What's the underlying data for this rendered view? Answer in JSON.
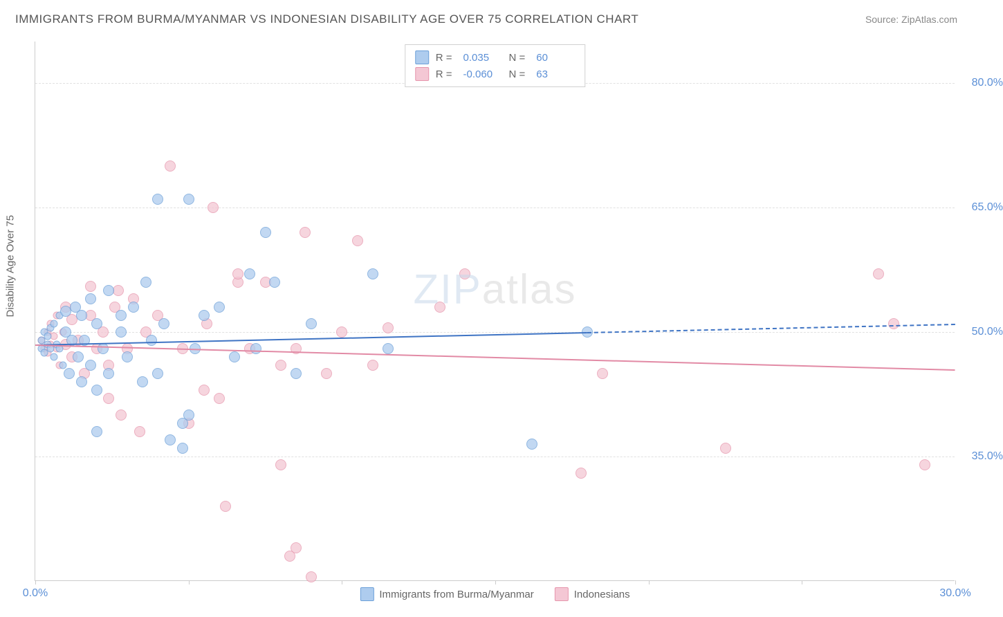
{
  "title": "IMMIGRANTS FROM BURMA/MYANMAR VS INDONESIAN DISABILITY AGE OVER 75 CORRELATION CHART",
  "source": "Source: ZipAtlas.com",
  "watermark_prefix": "ZIP",
  "watermark_suffix": "atlas",
  "y_axis_label": "Disability Age Over 75",
  "colors": {
    "series_a_fill": "#aeccee",
    "series_a_stroke": "#6b9fd8",
    "series_b_fill": "#f4c7d4",
    "series_b_stroke": "#e695ac",
    "trend_a": "#3f74c4",
    "trend_b": "#e28aa5",
    "grid": "#e0e0e0",
    "axis": "#cccccc",
    "tick_text": "#5b8fd6"
  },
  "chart": {
    "type": "scatter",
    "xlim": [
      0,
      30
    ],
    "ylim": [
      20,
      85
    ],
    "x_ticks": [
      0,
      5,
      10,
      15,
      20,
      25,
      30
    ],
    "x_tick_labels": {
      "0": "0.0%",
      "30": "30.0%"
    },
    "y_gridlines": [
      35,
      50,
      65,
      80
    ],
    "y_tick_labels": {
      "35": "35.0%",
      "50": "50.0%",
      "65": "65.0%",
      "80": "80.0%"
    },
    "marker_radius": 8,
    "marker_opacity": 0.75
  },
  "legend_top": [
    {
      "swatch": "a",
      "r_label": "R =",
      "r": "0.035",
      "n_label": "N =",
      "n": "60"
    },
    {
      "swatch": "b",
      "r_label": "R =",
      "r": "-0.060",
      "n_label": "N =",
      "n": "63"
    }
  ],
  "legend_bottom": [
    {
      "swatch": "a",
      "label": "Immigrants from Burma/Myanmar"
    },
    {
      "swatch": "b",
      "label": "Indonesians"
    }
  ],
  "trend_lines": {
    "a": {
      "x1": 0,
      "y1": 48.5,
      "x2": 18,
      "y2": 50.0,
      "x2_dash": 30,
      "y2_dash": 51.0
    },
    "b": {
      "x1": 0,
      "y1": 48.5,
      "x2": 30,
      "y2": 45.5
    }
  },
  "series_a": [
    {
      "x": 0.2,
      "y": 48
    },
    {
      "x": 0.2,
      "y": 49
    },
    {
      "x": 0.3,
      "y": 50
    },
    {
      "x": 0.3,
      "y": 47.5
    },
    {
      "x": 0.4,
      "y": 48.5
    },
    {
      "x": 0.4,
      "y": 49.5
    },
    {
      "x": 0.5,
      "y": 48
    },
    {
      "x": 0.5,
      "y": 50.5
    },
    {
      "x": 0.6,
      "y": 47
    },
    {
      "x": 0.6,
      "y": 51
    },
    {
      "x": 0.7,
      "y": 48.5
    },
    {
      "x": 0.8,
      "y": 52
    },
    {
      "x": 0.8,
      "y": 48
    },
    {
      "x": 0.9,
      "y": 46
    },
    {
      "x": 1.0,
      "y": 50
    },
    {
      "x": 1.0,
      "y": 52.5
    },
    {
      "x": 1.1,
      "y": 45
    },
    {
      "x": 1.2,
      "y": 49
    },
    {
      "x": 1.3,
      "y": 53
    },
    {
      "x": 1.4,
      "y": 47
    },
    {
      "x": 1.5,
      "y": 52
    },
    {
      "x": 1.5,
      "y": 44
    },
    {
      "x": 1.6,
      "y": 49
    },
    {
      "x": 1.8,
      "y": 46
    },
    {
      "x": 1.8,
      "y": 54
    },
    {
      "x": 2.0,
      "y": 51
    },
    {
      "x": 2.0,
      "y": 43
    },
    {
      "x": 2.0,
      "y": 38
    },
    {
      "x": 2.2,
      "y": 48
    },
    {
      "x": 2.4,
      "y": 55
    },
    {
      "x": 2.4,
      "y": 45
    },
    {
      "x": 2.8,
      "y": 52
    },
    {
      "x": 2.8,
      "y": 50
    },
    {
      "x": 3.0,
      "y": 47
    },
    {
      "x": 3.2,
      "y": 53
    },
    {
      "x": 3.5,
      "y": 44
    },
    {
      "x": 3.6,
      "y": 56
    },
    {
      "x": 3.8,
      "y": 49
    },
    {
      "x": 4.0,
      "y": 66
    },
    {
      "x": 4.0,
      "y": 45
    },
    {
      "x": 4.2,
      "y": 51
    },
    {
      "x": 4.4,
      "y": 37
    },
    {
      "x": 4.8,
      "y": 39
    },
    {
      "x": 4.8,
      "y": 36
    },
    {
      "x": 5.0,
      "y": 66
    },
    {
      "x": 5.0,
      "y": 40
    },
    {
      "x": 5.2,
      "y": 48
    },
    {
      "x": 5.5,
      "y": 52
    },
    {
      "x": 6.0,
      "y": 53
    },
    {
      "x": 6.5,
      "y": 47
    },
    {
      "x": 7.0,
      "y": 57
    },
    {
      "x": 7.2,
      "y": 48
    },
    {
      "x": 7.5,
      "y": 62
    },
    {
      "x": 7.8,
      "y": 56
    },
    {
      "x": 8.5,
      "y": 45
    },
    {
      "x": 9.0,
      "y": 51
    },
    {
      "x": 11.0,
      "y": 57
    },
    {
      "x": 11.5,
      "y": 48
    },
    {
      "x": 16.2,
      "y": 36.5
    },
    {
      "x": 18.0,
      "y": 50
    }
  ],
  "series_b": [
    {
      "x": 0.2,
      "y": 49
    },
    {
      "x": 0.3,
      "y": 48
    },
    {
      "x": 0.4,
      "y": 47.5
    },
    {
      "x": 0.4,
      "y": 50
    },
    {
      "x": 0.5,
      "y": 48.5
    },
    {
      "x": 0.5,
      "y": 51
    },
    {
      "x": 0.6,
      "y": 49.5
    },
    {
      "x": 0.7,
      "y": 48
    },
    {
      "x": 0.7,
      "y": 52
    },
    {
      "x": 0.8,
      "y": 46
    },
    {
      "x": 0.9,
      "y": 50
    },
    {
      "x": 1.0,
      "y": 48.5
    },
    {
      "x": 1.0,
      "y": 53
    },
    {
      "x": 1.2,
      "y": 47
    },
    {
      "x": 1.2,
      "y": 51.5
    },
    {
      "x": 1.4,
      "y": 49
    },
    {
      "x": 1.6,
      "y": 45
    },
    {
      "x": 1.8,
      "y": 52
    },
    {
      "x": 1.8,
      "y": 55.5
    },
    {
      "x": 2.0,
      "y": 48
    },
    {
      "x": 2.2,
      "y": 50
    },
    {
      "x": 2.4,
      "y": 46
    },
    {
      "x": 2.4,
      "y": 42
    },
    {
      "x": 2.6,
      "y": 53
    },
    {
      "x": 2.7,
      "y": 55
    },
    {
      "x": 2.8,
      "y": 40
    },
    {
      "x": 3.0,
      "y": 48
    },
    {
      "x": 3.2,
      "y": 54
    },
    {
      "x": 3.4,
      "y": 38
    },
    {
      "x": 3.6,
      "y": 50
    },
    {
      "x": 4.0,
      "y": 52
    },
    {
      "x": 4.4,
      "y": 70
    },
    {
      "x": 4.8,
      "y": 48
    },
    {
      "x": 5.0,
      "y": 39
    },
    {
      "x": 5.5,
      "y": 43
    },
    {
      "x": 5.6,
      "y": 51
    },
    {
      "x": 5.8,
      "y": 65
    },
    {
      "x": 6.0,
      "y": 42
    },
    {
      "x": 6.2,
      "y": 29
    },
    {
      "x": 6.6,
      "y": 56
    },
    {
      "x": 6.6,
      "y": 57
    },
    {
      "x": 7.0,
      "y": 48
    },
    {
      "x": 7.5,
      "y": 56
    },
    {
      "x": 8.0,
      "y": 34
    },
    {
      "x": 8.0,
      "y": 46
    },
    {
      "x": 8.3,
      "y": 23
    },
    {
      "x": 8.5,
      "y": 24
    },
    {
      "x": 8.5,
      "y": 48
    },
    {
      "x": 8.8,
      "y": 62
    },
    {
      "x": 9.0,
      "y": 20.5
    },
    {
      "x": 9.5,
      "y": 45
    },
    {
      "x": 10.0,
      "y": 50
    },
    {
      "x": 10.5,
      "y": 61
    },
    {
      "x": 11.0,
      "y": 46
    },
    {
      "x": 13.2,
      "y": 53
    },
    {
      "x": 14.0,
      "y": 57
    },
    {
      "x": 17.8,
      "y": 33
    },
    {
      "x": 18.5,
      "y": 45
    },
    {
      "x": 22.5,
      "y": 36
    },
    {
      "x": 27.5,
      "y": 57
    },
    {
      "x": 28.0,
      "y": 51
    },
    {
      "x": 29.0,
      "y": 34
    },
    {
      "x": 11.5,
      "y": 50.5
    }
  ]
}
